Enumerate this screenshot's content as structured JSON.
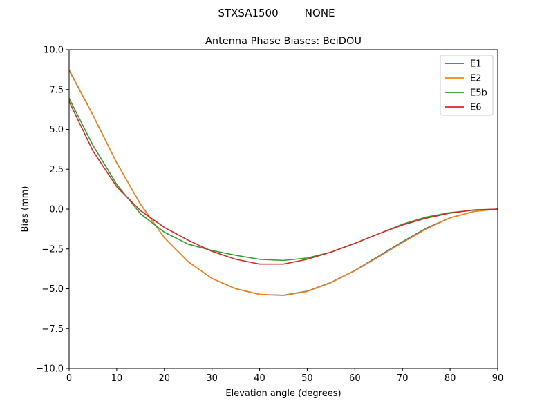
{
  "chart_data": {
    "type": "line",
    "suptitle": "STXSA1500        NONE",
    "title": "Antenna Phase Biases: BeiDOU",
    "xlabel": "Elevation angle (degrees)",
    "ylabel": "Bias (mm)",
    "xlim": [
      0,
      90
    ],
    "ylim": [
      -10,
      10
    ],
    "xticks": [
      0,
      10,
      20,
      30,
      40,
      50,
      60,
      70,
      80,
      90
    ],
    "yticks": [
      -10.0,
      -7.5,
      -5.0,
      -2.5,
      0.0,
      2.5,
      5.0,
      7.5,
      10.0
    ],
    "grid": false,
    "legend_position": "top-right",
    "x": [
      0,
      5,
      10,
      15,
      20,
      25,
      30,
      35,
      40,
      45,
      50,
      55,
      60,
      65,
      70,
      75,
      80,
      85,
      90
    ],
    "series": [
      {
        "name": "E1",
        "color": "#1f77b4",
        "values": [
          8.7,
          5.9,
          2.9,
          0.3,
          -1.8,
          -3.3,
          -4.35,
          -5.0,
          -5.35,
          -5.4,
          -5.15,
          -4.6,
          -3.85,
          -2.95,
          -2.05,
          -1.2,
          -0.55,
          -0.15,
          0.0
        ]
      },
      {
        "name": "E2",
        "color": "#ff7f0e",
        "values": [
          8.75,
          5.9,
          2.9,
          0.3,
          -1.8,
          -3.3,
          -4.35,
          -5.0,
          -5.35,
          -5.42,
          -5.17,
          -4.62,
          -3.87,
          -3.0,
          -2.1,
          -1.25,
          -0.55,
          -0.15,
          0.0
        ]
      },
      {
        "name": "E5b",
        "color": "#2ca02c",
        "values": [
          6.95,
          4.0,
          1.55,
          -0.3,
          -1.45,
          -2.2,
          -2.6,
          -2.9,
          -3.15,
          -3.22,
          -3.07,
          -2.7,
          -2.15,
          -1.55,
          -0.95,
          -0.5,
          -0.22,
          -0.07,
          0.0
        ]
      },
      {
        "name": "E6",
        "color": "#d62728",
        "values": [
          6.75,
          3.65,
          1.4,
          -0.1,
          -1.15,
          -1.95,
          -2.65,
          -3.15,
          -3.45,
          -3.45,
          -3.15,
          -2.7,
          -2.15,
          -1.55,
          -1.0,
          -0.57,
          -0.25,
          -0.05,
          0.0
        ]
      }
    ]
  }
}
